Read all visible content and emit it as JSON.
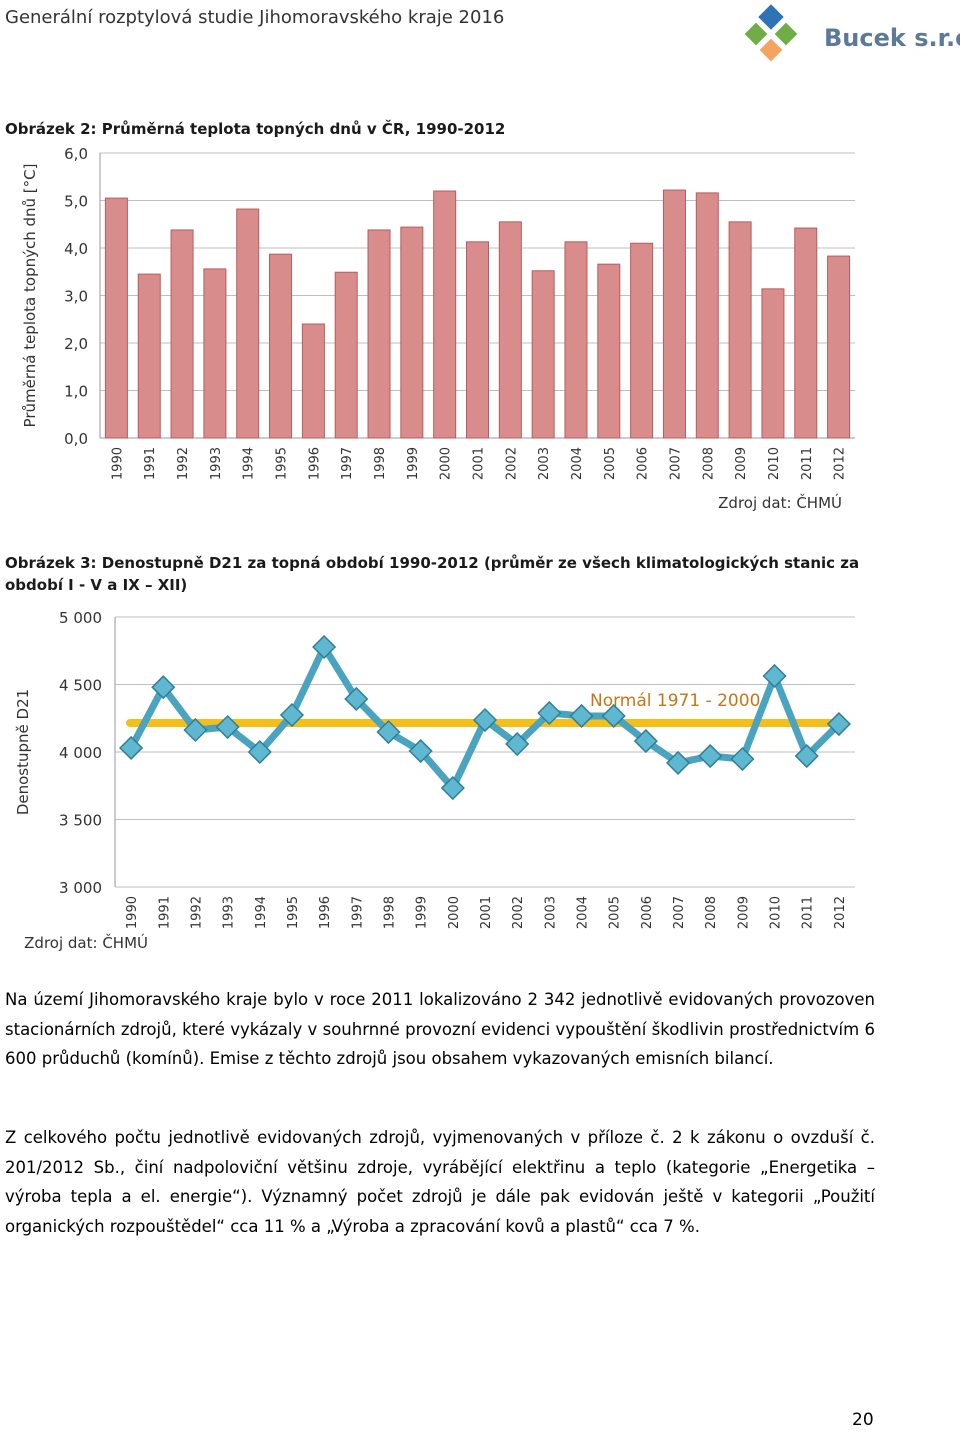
{
  "header": {
    "title": "Generální rozptylová studie Jihomoravského kraje 2016",
    "company": "Bucek s.r.o."
  },
  "chart_data": [
    {
      "type": "bar",
      "title": "Obrázek 2: Průměrná teplota topných dnů v ČR, 1990-2012",
      "y_label": "Průměrná teplota topných dnů [°C]",
      "annotation": "Zdroj dat: ČHMÚ",
      "categories": [
        "1990",
        "1991",
        "1992",
        "1993",
        "1994",
        "1995",
        "1996",
        "1997",
        "1998",
        "1999",
        "2000",
        "2001",
        "2002",
        "2003",
        "2004",
        "2005",
        "2006",
        "2007",
        "2008",
        "2009",
        "2010",
        "2011",
        "2012"
      ],
      "values": [
        5.05,
        3.45,
        4.38,
        3.56,
        4.82,
        3.87,
        2.4,
        3.49,
        4.38,
        4.44,
        5.2,
        4.13,
        4.55,
        3.52,
        4.13,
        3.66,
        4.1,
        5.22,
        5.16,
        4.55,
        3.14,
        4.42,
        3.83
      ],
      "color": "#d98c8c",
      "ylim": [
        0,
        6
      ],
      "yticks": [
        {
          "value": 0,
          "label": "0,0"
        },
        {
          "value": 1,
          "label": "1,0"
        },
        {
          "value": 2,
          "label": "2,0"
        },
        {
          "value": 3,
          "label": "3,0"
        },
        {
          "value": 4,
          "label": "4,0"
        },
        {
          "value": 5,
          "label": "5,0"
        },
        {
          "value": 6,
          "label": "6,0"
        }
      ],
      "grid": true
    },
    {
      "type": "line",
      "title": "Obrázek 3: Denostupně D21 za topná období 1990-2012 (průměr ze všech klimatologických stanic za období I - V a IX – XII)",
      "y_label": "Denostupně D21",
      "annotation": "Zdroj dat: ČHMÚ",
      "categories": [
        "1990",
        "1991",
        "1992",
        "1993",
        "1994",
        "1995",
        "1996",
        "1997",
        "1998",
        "1999",
        "2000",
        "2001",
        "2002",
        "2003",
        "2004",
        "2005",
        "2006",
        "2007",
        "2008",
        "2009",
        "2010",
        "2011",
        "2012"
      ],
      "values": [
        4030,
        4480,
        4163,
        4185,
        4000,
        4274,
        4778,
        4393,
        4148,
        4007,
        3733,
        4237,
        4059,
        4289,
        4267,
        4267,
        4081,
        3919,
        3970,
        3948,
        4563,
        3970,
        4207
      ],
      "color": "#4aa3bf",
      "reference": {
        "label": "Normál 1971 - 2000",
        "value": 4215,
        "color": "#f5bf1a"
      },
      "ylim": [
        3000,
        5000
      ],
      "yticks": [
        {
          "value": 3000,
          "label": "3 000"
        },
        {
          "value": 3500,
          "label": "3 500"
        },
        {
          "value": 4000,
          "label": "4 000"
        },
        {
          "value": 4500,
          "label": "4 500"
        },
        {
          "value": 5000,
          "label": "5 000"
        }
      ],
      "grid": true
    }
  ],
  "paragraphs": [
    "Na území Jihomoravského kraje bylo v roce 2011 lokalizováno 2 342 jednotlivě evidovaných provozoven stacionárních zdrojů, které vykázaly v souhrnné provozní evidenci vypouštění škodlivin prostřednictvím 6 600 průduchů (komínů). Emise z těchto zdrojů jsou obsahem vykazovaných emisních bilancí.",
    "Z celkového počtu jednotlivě evidovaných zdrojů, vyjmenovaných v příloze č. 2 k zákonu o ovzduší č. 201/2012 Sb., činí nadpoloviční většinu zdroje, vyrábějící elektřinu a teplo (kategorie „Energetika – výroba tepla a el. energie“). Významný počet zdrojů je dále pak evidován ještě v kategorii „Použití organických rozpouštědel“ cca 11 % a „Výroba a zpracování kovů a plastů“ cca 7 %."
  ],
  "page_number": "20"
}
